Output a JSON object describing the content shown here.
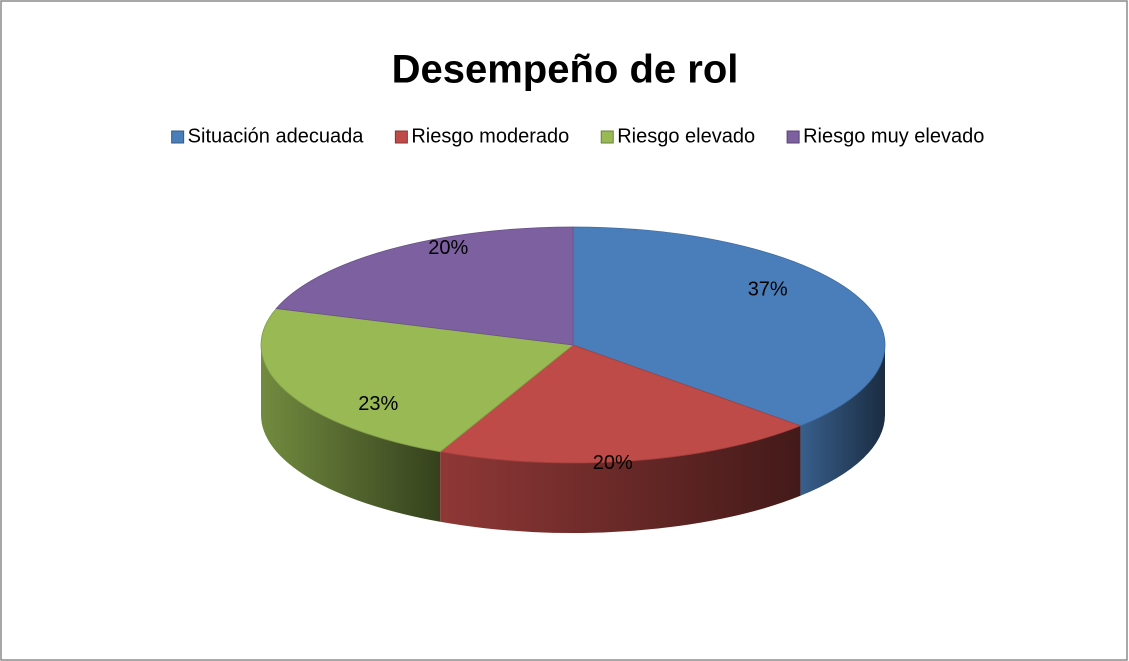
{
  "chart_data": {
    "type": "pie",
    "title": "Desempeño de rol",
    "categories": [
      "Situación adecuada",
      "Riesgo moderado",
      "Riesgo elevado",
      "Riesgo muy elevado"
    ],
    "values": [
      37,
      20,
      23,
      20
    ],
    "value_labels": [
      "37%",
      "20%",
      "23%",
      "20%"
    ],
    "colors": [
      "#4a7ebb",
      "#be4b48",
      "#98b954",
      "#7d60a0"
    ],
    "legend": "top"
  }
}
